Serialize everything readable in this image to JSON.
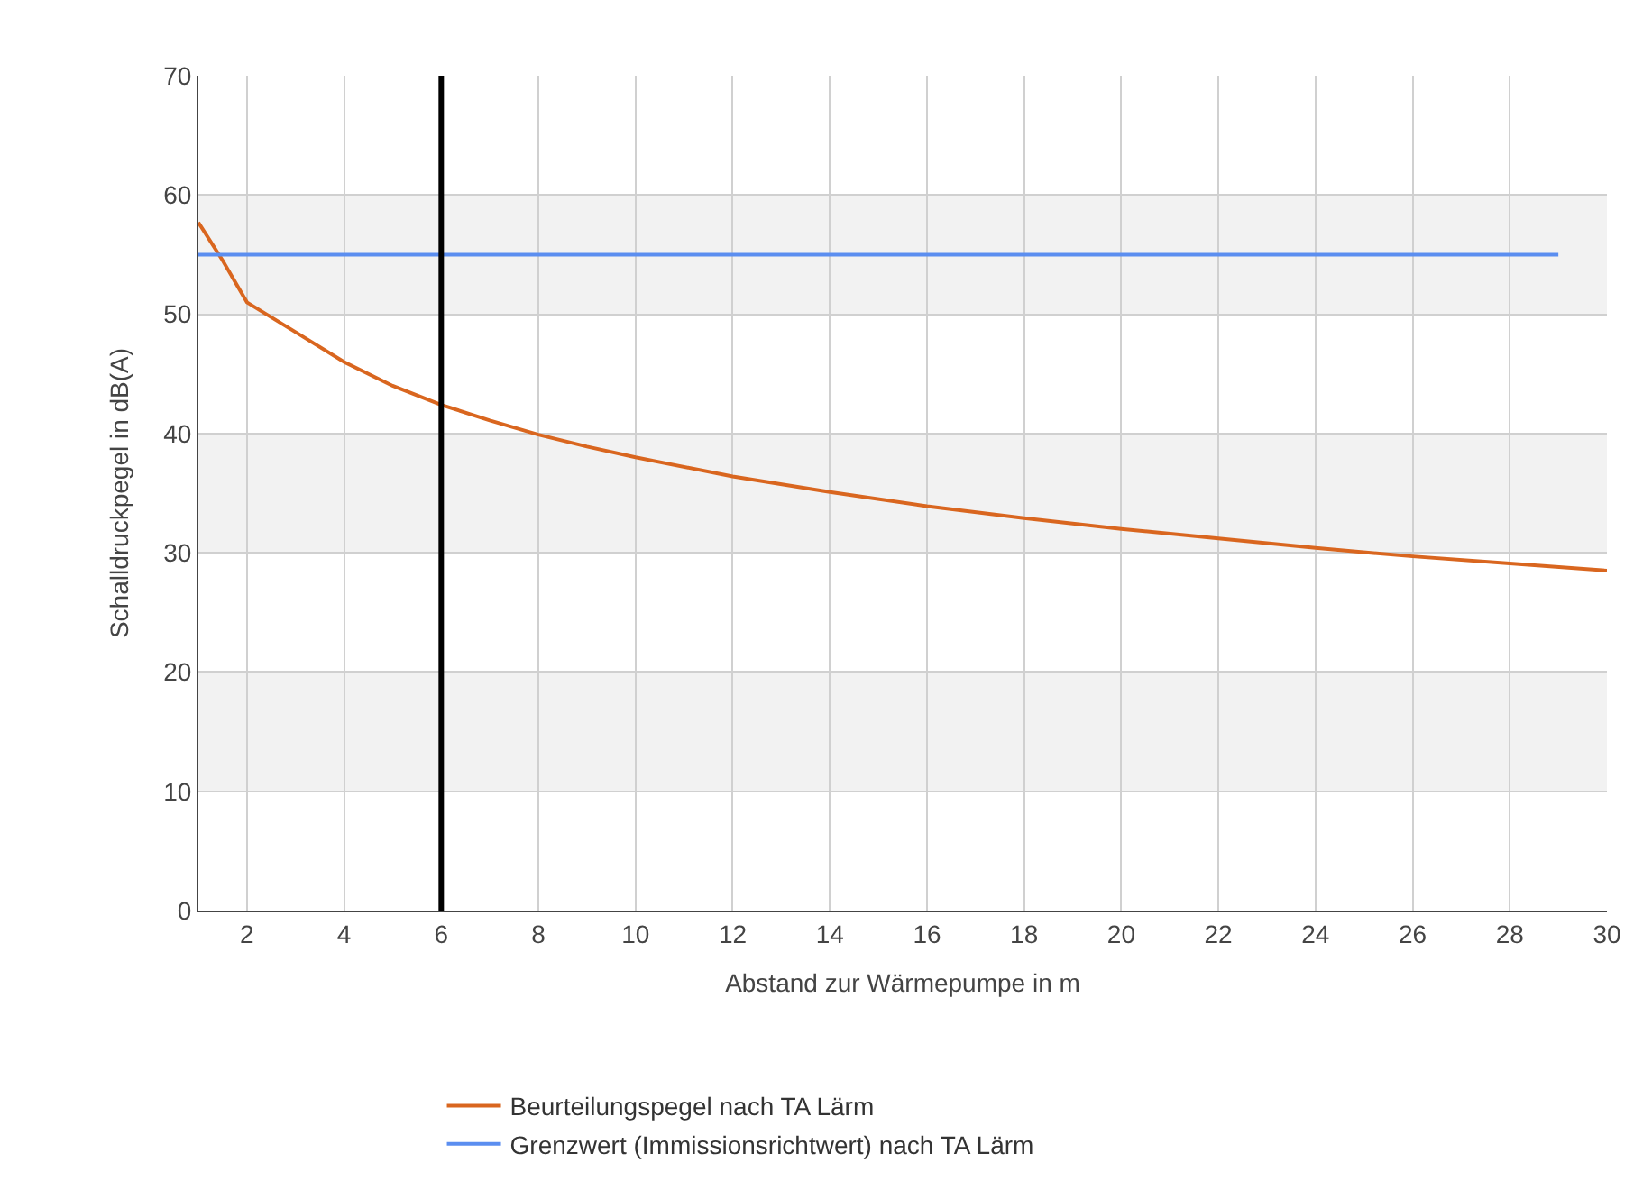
{
  "chart_data": {
    "type": "line",
    "xlabel": "Abstand zur Wärmepumpe in m",
    "ylabel": "Schalldruckpegel in dB(A)",
    "xlim": [
      1,
      30
    ],
    "xticks": [
      2,
      4,
      6,
      8,
      10,
      12,
      14,
      16,
      18,
      20,
      22,
      24,
      26,
      28,
      30
    ],
    "ylim": [
      0,
      70
    ],
    "yticks": [
      0,
      10,
      20,
      30,
      40,
      50,
      60,
      70
    ],
    "grid": true,
    "legend": "bottom",
    "marker": "none",
    "line_style": "solid",
    "series": [
      {
        "name": "Beurteilungspegel nach TA Lärm",
        "color": "#d9661f",
        "x": [
          1,
          1.5,
          2,
          3,
          4,
          5,
          6,
          7,
          8,
          9,
          10,
          12,
          14,
          16,
          18,
          20,
          22,
          24,
          26,
          28,
          30
        ],
        "values": [
          57.7,
          54.5,
          51,
          48.5,
          46,
          44,
          42.4,
          41.1,
          39.9,
          38.9,
          38,
          36.4,
          35.1,
          33.9,
          32.9,
          32,
          31.2,
          30.4,
          29.7,
          29.1,
          28.5
        ]
      },
      {
        "name": "Grenzwert (Immissionsrichtwert) nach TA Lärm",
        "color": "#5b8ef0",
        "x": [
          1,
          29
        ],
        "values": [
          55,
          55
        ]
      }
    ],
    "ref_lines": [
      {
        "axis": "x",
        "value": 6,
        "color": "#000000",
        "line_style": "solid"
      }
    ],
    "bands": [
      {
        "axis": "y",
        "from": 10,
        "to": 20,
        "color": "#f2f2f2"
      },
      {
        "axis": "y",
        "from": 30,
        "to": 40,
        "color": "#f2f2f2"
      },
      {
        "axis": "y",
        "from": 50,
        "to": 60,
        "color": "#f2f2f2"
      }
    ]
  }
}
